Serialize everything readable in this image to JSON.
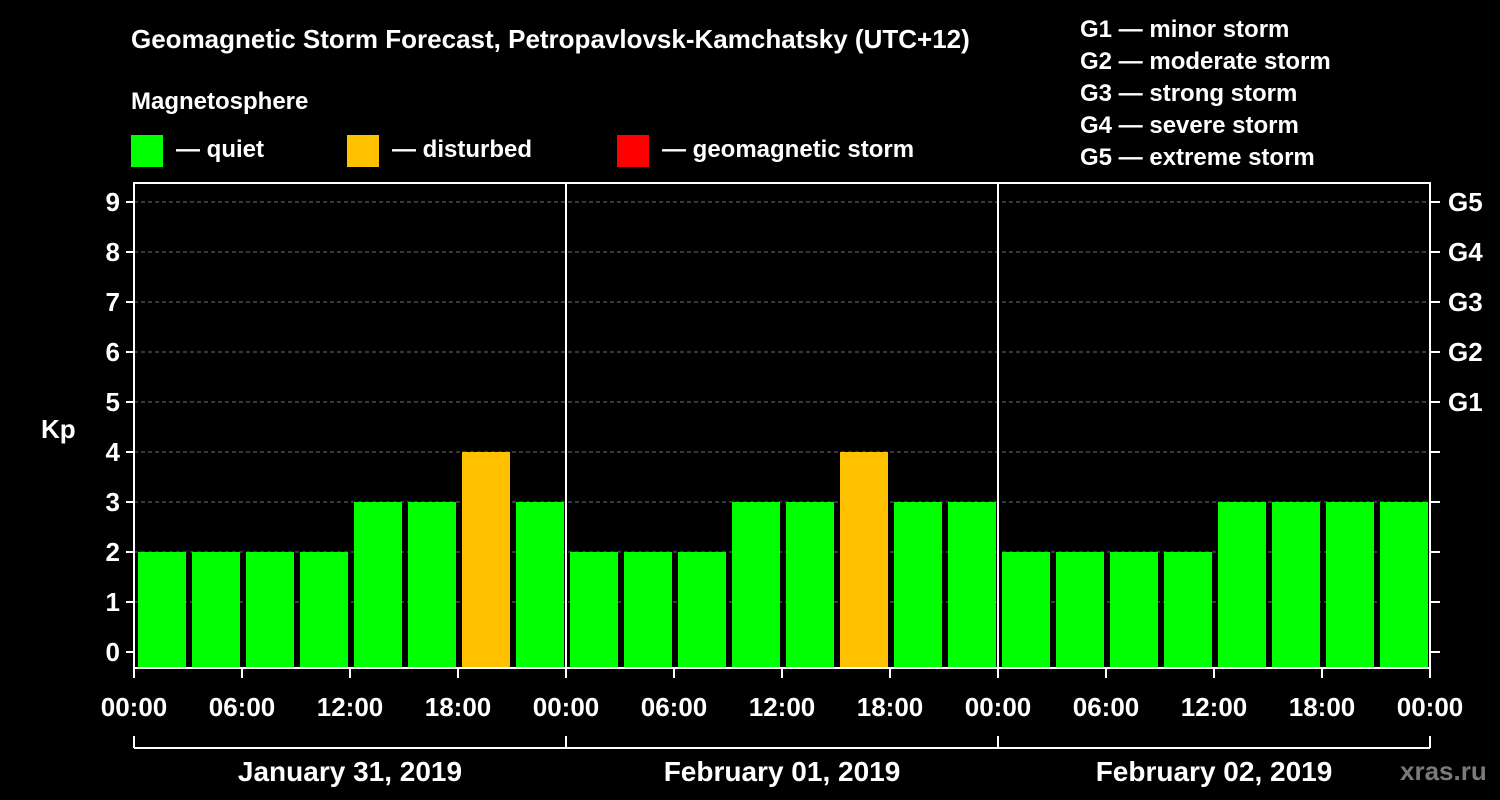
{
  "chart_data": {
    "type": "bar",
    "title": "Geomagnetic Storm Forecast, Petropavlovsk-Kamchatsky (UTC+12)",
    "ylabel": "Kp",
    "ylim": [
      0,
      9
    ],
    "yticks": [
      "0",
      "1",
      "2",
      "3",
      "4",
      "5",
      "6",
      "7",
      "8",
      "9"
    ],
    "grid": true,
    "right_axis_labels": [
      {
        "kp": 5,
        "label": "G1"
      },
      {
        "kp": 6,
        "label": "G2"
      },
      {
        "kp": 7,
        "label": "G3"
      },
      {
        "kp": 8,
        "label": "G4"
      },
      {
        "kp": 9,
        "label": "G5"
      }
    ],
    "x_tick_labels": [
      "00:00",
      "06:00",
      "12:00",
      "18:00",
      "00:00",
      "06:00",
      "12:00",
      "18:00",
      "00:00",
      "06:00",
      "12:00",
      "18:00",
      "00:00"
    ],
    "days": [
      "January 31, 2019",
      "February 01, 2019",
      "February 02, 2019"
    ],
    "values": [
      2,
      2,
      2,
      2,
      3,
      3,
      4,
      3,
      2,
      2,
      2,
      3,
      3,
      4,
      3,
      3,
      2,
      2,
      2,
      2,
      3,
      3,
      3,
      3
    ],
    "thresholds": {
      "disturbed": 4,
      "storm": 5
    }
  },
  "legend": {
    "title": "Magnetosphere",
    "items": [
      {
        "label": "— quiet",
        "color": "#00ff00"
      },
      {
        "label": "— disturbed",
        "color": "#ffc000"
      },
      {
        "label": "— geomagnetic storm",
        "color": "#ff0000"
      }
    ]
  },
  "storm_scale": [
    "G1 — minor storm",
    "G2 — moderate storm",
    "G3 — strong storm",
    "G4 — severe storm",
    "G5 — extreme storm"
  ],
  "watermark": "xras.ru"
}
